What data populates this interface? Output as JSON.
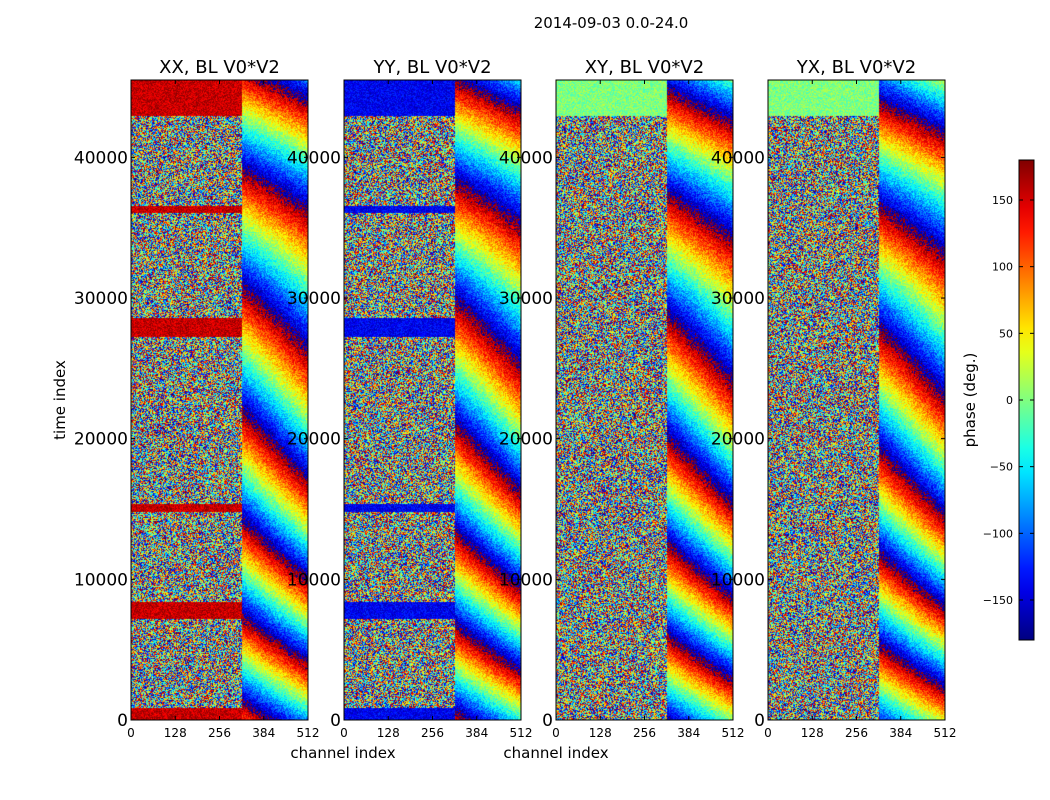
{
  "figure_title": "2014-09-03 0.0-24.0",
  "chart_data": [
    {
      "type": "heatmap",
      "title": "XX, BL V0*V2",
      "pol": "XX",
      "xlabel": "channel index",
      "ylabel": "time index",
      "xlim": [
        0,
        512
      ],
      "ylim": [
        0,
        45500
      ],
      "xticks": [
        0,
        128,
        256,
        384,
        512
      ],
      "yticks": [
        0,
        10000,
        20000,
        30000,
        40000
      ],
      "base_phase": 155,
      "bands": [
        [
          0,
          900
        ],
        [
          7200,
          8400
        ],
        [
          14800,
          15400
        ],
        [
          27300,
          28600
        ],
        [
          36100,
          36600
        ],
        [
          43000,
          45500
        ]
      ]
    },
    {
      "type": "heatmap",
      "title": "YY, BL V0*V2",
      "pol": "YY",
      "xlabel": "channel index",
      "ylabel": "",
      "xlim": [
        0,
        512
      ],
      "ylim": [
        0,
        45500
      ],
      "xticks": [
        0,
        128,
        256,
        384,
        512
      ],
      "yticks": [
        0,
        10000,
        20000,
        30000,
        40000
      ],
      "base_phase": -140,
      "bands": [
        [
          0,
          900
        ],
        [
          7200,
          8400
        ],
        [
          14800,
          15400
        ],
        [
          27300,
          28600
        ],
        [
          36100,
          36600
        ],
        [
          43000,
          45500
        ]
      ]
    },
    {
      "type": "heatmap",
      "title": "XY, BL V0*V2",
      "pol": "XY",
      "xlabel": "",
      "ylabel": "",
      "xlim": [
        0,
        512
      ],
      "ylim": [
        0,
        45500
      ],
      "xticks": [
        0,
        128,
        256,
        384,
        512
      ],
      "yticks": [
        0,
        10000,
        20000,
        30000,
        40000
      ],
      "base_phase": 0,
      "bands": [
        [
          43000,
          45500
        ]
      ]
    },
    {
      "type": "heatmap",
      "title": "YX, BL V0*V2",
      "pol": "YX",
      "xlabel": "",
      "ylabel": "",
      "xlim": [
        0,
        512
      ],
      "ylim": [
        0,
        45500
      ],
      "xticks": [
        0,
        128,
        256,
        384,
        512
      ],
      "yticks": [
        0,
        10000,
        20000,
        30000,
        40000
      ],
      "base_phase": 0,
      "bands": [
        [
          43000,
          45500
        ]
      ]
    }
  ],
  "colorbar": {
    "label": "phase (deg.)",
    "range": [
      -180,
      180
    ],
    "ticks": [
      150,
      100,
      50,
      0,
      -50,
      -100,
      -150
    ],
    "tick_labels": [
      "150",
      "100",
      "50",
      "0",
      "−50",
      "−100",
      "−150"
    ],
    "colormap": "jet"
  }
}
